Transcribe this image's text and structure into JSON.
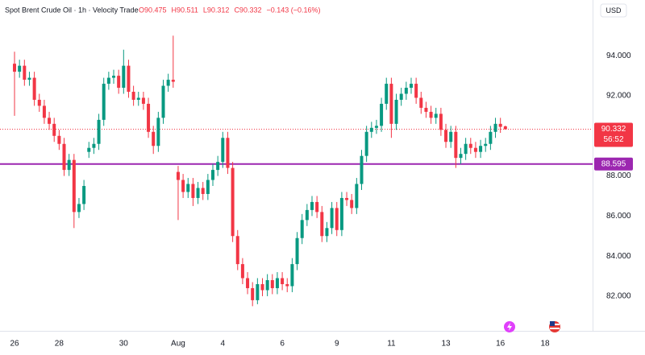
{
  "header": {
    "title": "Spot Brent Crude Oil · 1h · Velocity Trade",
    "ohlc_labels": [
      "O90.475",
      "H90.511",
      "L90.312",
      "C90.332"
    ],
    "change_label": "−0.143 (−0.16%)",
    "currency": "USD"
  },
  "chart_data": {
    "type": "candlestick",
    "up_color": "#089981",
    "down_color": "#f23645",
    "open": [
      93.6,
      93.2,
      93.5,
      92.8,
      92.9,
      91.8,
      91.5,
      90.9,
      90.6,
      90.0,
      89.6,
      88.3,
      88.8,
      86.2,
      86.6,
      89.2,
      89.4,
      89.6,
      90.8,
      92.6,
      92.9,
      93.0,
      92.4,
      93.5,
      92.2,
      91.8,
      91.9,
      91.6,
      90.2,
      89.5,
      90.9,
      92.5,
      92.8,
      88.2,
      87.8,
      87.2,
      87.6,
      86.9,
      87.4,
      87.1,
      87.8,
      88.3,
      88.7,
      89.9,
      88.4,
      85.0,
      83.6,
      82.9,
      82.4,
      81.8,
      82.6,
      82.3,
      82.8,
      82.4,
      82.9,
      82.6,
      82.5,
      83.6,
      84.9,
      85.8,
      86.3,
      86.7,
      86.2,
      85.0,
      85.4,
      86.4,
      85.3,
      86.9,
      86.8,
      86.4,
      87.6,
      89.0,
      90.2,
      90.4,
      90.5,
      91.6,
      92.6,
      90.6,
      91.8,
      92.1,
      92.4,
      92.6,
      91.9,
      91.4,
      91.2,
      90.9,
      91.1,
      90.3,
      89.7,
      90.2,
      88.9,
      89.1,
      89.6,
      89.4,
      89.2,
      89.5,
      89.6,
      90.2,
      90.6,
      90.475
    ],
    "high": [
      94.2,
      93.8,
      93.8,
      93.2,
      93.2,
      92.1,
      91.8,
      91.2,
      90.9,
      90.3,
      89.9,
      89.1,
      89.1,
      86.9,
      87.8,
      89.7,
      89.9,
      91.1,
      92.9,
      93.2,
      93.3,
      93.3,
      94.3,
      93.8,
      92.5,
      92.2,
      92.2,
      91.9,
      90.5,
      91.2,
      92.8,
      93.1,
      95.0,
      88.5,
      88.1,
      87.9,
      87.9,
      87.7,
      87.7,
      88.1,
      88.6,
      89.0,
      90.2,
      90.2,
      88.7,
      85.3,
      83.9,
      83.2,
      82.7,
      82.9,
      82.9,
      83.1,
      83.1,
      83.2,
      83.2,
      82.9,
      83.9,
      85.2,
      86.1,
      86.6,
      87.0,
      87.0,
      86.5,
      85.7,
      86.7,
      86.7,
      87.2,
      87.2,
      87.1,
      87.9,
      89.3,
      90.5,
      90.7,
      90.8,
      91.9,
      92.9,
      92.9,
      92.1,
      92.4,
      92.7,
      92.9,
      92.9,
      92.2,
      91.7,
      91.5,
      91.4,
      91.4,
      90.6,
      90.5,
      90.5,
      89.4,
      89.9,
      89.9,
      89.7,
      89.8,
      89.9,
      90.5,
      90.9,
      90.9,
      90.511
    ],
    "low": [
      91.0,
      92.9,
      92.5,
      92.5,
      91.5,
      91.2,
      90.6,
      90.3,
      89.7,
      89.3,
      88.0,
      88.0,
      85.4,
      85.9,
      86.3,
      88.9,
      89.1,
      89.3,
      90.5,
      92.3,
      92.6,
      92.1,
      92.1,
      91.9,
      91.5,
      91.5,
      91.3,
      89.9,
      89.1,
      89.2,
      90.6,
      92.2,
      92.4,
      85.8,
      86.9,
      86.9,
      86.5,
      86.6,
      86.8,
      86.8,
      87.5,
      88.0,
      88.4,
      88.1,
      84.7,
      83.3,
      82.6,
      82.1,
      81.5,
      81.6,
      82.0,
      82.0,
      82.1,
      82.1,
      82.3,
      82.2,
      82.2,
      83.3,
      84.6,
      85.5,
      86.0,
      85.9,
      84.7,
      84.7,
      85.1,
      85.0,
      85.0,
      86.5,
      86.1,
      86.1,
      87.3,
      88.7,
      89.9,
      90.1,
      90.2,
      91.3,
      89.9,
      90.3,
      91.5,
      91.8,
      92.1,
      91.6,
      91.1,
      90.9,
      90.6,
      90.6,
      90.0,
      89.4,
      89.4,
      88.4,
      88.6,
      88.8,
      89.1,
      88.9,
      88.9,
      89.2,
      89.3,
      89.9,
      90.15,
      90.312
    ],
    "close": [
      93.2,
      93.5,
      92.8,
      92.9,
      91.8,
      91.5,
      90.9,
      90.6,
      90.0,
      89.6,
      88.3,
      88.8,
      86.2,
      86.6,
      87.5,
      89.4,
      89.6,
      90.8,
      92.6,
      92.9,
      93.0,
      92.4,
      93.5,
      92.2,
      91.8,
      91.9,
      91.6,
      90.2,
      89.5,
      90.9,
      92.5,
      92.8,
      92.7,
      87.8,
      87.2,
      87.6,
      86.9,
      87.4,
      87.1,
      87.8,
      88.3,
      88.7,
      89.9,
      88.4,
      85.0,
      83.6,
      82.9,
      82.4,
      81.8,
      82.6,
      82.3,
      82.8,
      82.4,
      82.9,
      82.6,
      82.5,
      83.6,
      84.9,
      85.8,
      86.3,
      86.7,
      86.2,
      85.0,
      85.4,
      86.4,
      85.3,
      86.9,
      86.8,
      86.4,
      87.6,
      89.0,
      90.2,
      90.4,
      90.5,
      91.6,
      92.6,
      90.6,
      91.8,
      92.1,
      92.4,
      92.6,
      91.9,
      91.4,
      91.2,
      90.9,
      91.1,
      90.3,
      89.7,
      90.2,
      88.9,
      89.1,
      89.6,
      89.4,
      89.2,
      89.5,
      89.6,
      90.2,
      90.6,
      90.45,
      90.332
    ],
    "xlim": [
      -2.93,
      116.59
    ],
    "xticks": [
      {
        "value": 0,
        "label": "26"
      },
      {
        "value": 9,
        "label": "28"
      },
      {
        "value": 22,
        "label": "30"
      },
      {
        "value": 33,
        "label": "Aug"
      },
      {
        "value": 42,
        "label": "4"
      },
      {
        "value": 54,
        "label": "6"
      },
      {
        "value": 65,
        "label": "9"
      },
      {
        "value": 76,
        "label": "11"
      },
      {
        "value": 87,
        "label": "13"
      },
      {
        "value": 98,
        "label": "16"
      },
      {
        "value": 107,
        "label": "18"
      }
    ],
    "ylim": [
      80.31,
      96.78
    ],
    "yticks": [
      {
        "value": 82,
        "label": "82.000"
      },
      {
        "value": 84,
        "label": "84.000"
      },
      {
        "value": 86,
        "label": "86.000"
      },
      {
        "value": 88,
        "label": "88.000"
      },
      {
        "value": 90,
        "label": "90.000"
      },
      {
        "value": 92,
        "label": "92.000"
      },
      {
        "value": 94,
        "label": "94.000"
      }
    ],
    "hline": 88.595,
    "hline_color": "#9c27b0",
    "last_price": 90.332,
    "countdown": "56:52",
    "grid": false
  }
}
